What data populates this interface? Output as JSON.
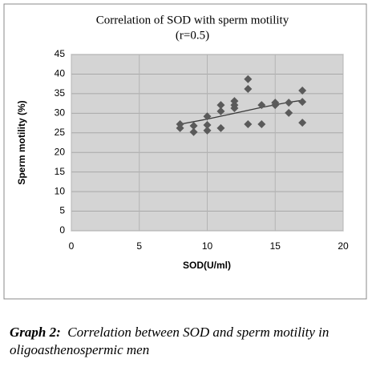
{
  "chart_data": {
    "type": "scatter",
    "title": "Correlation of SOD with sperm motility",
    "subtitle": "(r=0.5)",
    "x_label": "SOD(U/ml)",
    "y_label": "Sperm motility (%)",
    "x": [
      8,
      8,
      9,
      9,
      10,
      10,
      10,
      11,
      11,
      11,
      12,
      12,
      12,
      13,
      13,
      13,
      14,
      14,
      15,
      15,
      16,
      16,
      17,
      17,
      17
    ],
    "values": [
      27.2,
      26.2,
      26.8,
      25.2,
      29.2,
      27,
      25.6,
      32.1,
      30.5,
      26.2,
      33.1,
      32.1,
      31.3,
      38.7,
      36.2,
      27.2,
      32.1,
      27.2,
      32.7,
      32.1,
      32.7,
      30.1,
      35.8,
      32.9,
      27.6
    ],
    "color": "#5a5a5a",
    "trend": {
      "x": [
        8,
        10,
        12,
        14,
        16,
        17
      ],
      "values": [
        27.2,
        28.5,
        30,
        31.5,
        32.8,
        33.3
      ],
      "color": "#3a3a3a"
    },
    "xlim": [
      0,
      20
    ],
    "xticks": [
      0,
      5,
      10,
      15,
      20
    ],
    "ylim": [
      0,
      45
    ],
    "yticks": [
      0,
      5,
      10,
      15,
      20,
      25,
      30,
      35,
      40,
      45
    ],
    "grid": true
  },
  "caption": {
    "label": "Graph 2:",
    "text": "Correlation between SOD and sperm motility in oligoasthenospermic men"
  }
}
